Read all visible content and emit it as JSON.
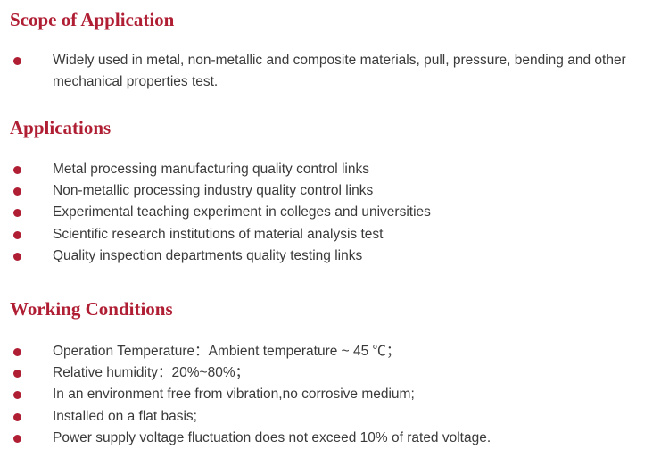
{
  "accent_color": "#b01e34",
  "sections": [
    {
      "title": "Scope of Application",
      "items": [
        "Widely used in metal, non-metallic and composite materials, pull, pressure, bending and other mechanical properties test."
      ]
    },
    {
      "title": "Applications",
      "items": [
        "Metal processing manufacturing quality control links",
        "Non-metallic processing industry quality control links",
        "Experimental teaching experiment in colleges and universities",
        "Scientific research institutions of material analysis test",
        "Quality inspection departments quality testing links"
      ]
    },
    {
      "title": "Working Conditions",
      "items": [
        "Operation Temperature：Ambient temperature ~ 45 ℃；",
        "Relative humidity：20%~80%；",
        "In an environment free from vibration,no corrosive medium;",
        "Installed on a flat basis;",
        "Power supply voltage fluctuation does not exceed 10% of rated voltage."
      ]
    }
  ]
}
